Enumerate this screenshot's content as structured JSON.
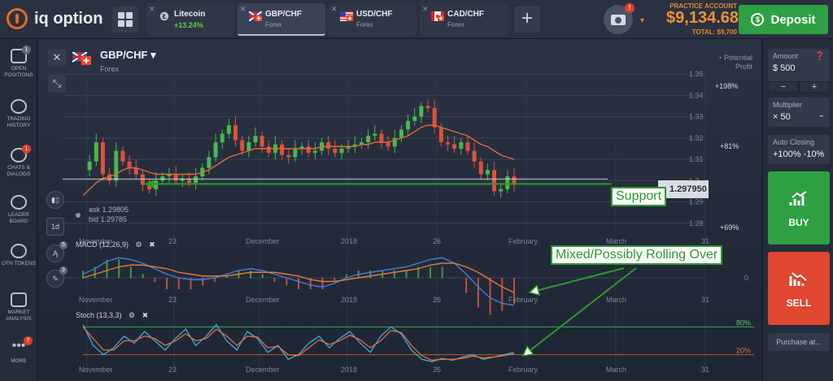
{
  "logo": {
    "text": "iq option"
  },
  "tabs": [
    {
      "name": "Litecoin",
      "sub": "+13.24%",
      "icon": "litecoin-icon",
      "positive": true
    },
    {
      "name": "GBP/CHF",
      "sub": "Forex",
      "icon": "flag-gbp-chf-icon",
      "active": true
    },
    {
      "name": "USD/CHF",
      "sub": "Forex",
      "icon": "flag-usd-chf-icon"
    },
    {
      "name": "CAD/CHF",
      "sub": "Forex",
      "icon": "flag-cad-chf-icon"
    }
  ],
  "account": {
    "type": "PRACTICE ACCOUNT",
    "balance": "$9,134.68",
    "total": "TOTAL: $9,700",
    "notification": "!"
  },
  "deposit_label": "Deposit",
  "sidebar": [
    {
      "label": "OPEN POSITIONS",
      "badge": "1",
      "icon": "chart-lines-icon"
    },
    {
      "label": "TRADING HISTORY",
      "icon": "clock-icon"
    },
    {
      "label": "CHATS & DIALOGS",
      "badge": "1",
      "icon": "chat-icon"
    },
    {
      "label": "LEADER BOARD",
      "icon": "globe-icon"
    },
    {
      "label": "OTN TOKENS",
      "icon": "token-icon"
    },
    {
      "label": "MARKET ANALYSIS",
      "icon": "newspaper-icon"
    },
    {
      "label": "MORE",
      "badge": "7",
      "icon": "more-dots-icon"
    }
  ],
  "chart_header": {
    "pair": "GBP/CHF",
    "market": "Forex"
  },
  "tools": {
    "timeframe": "1d",
    "indicators_badge": "5",
    "drawing_badge": "3"
  },
  "potential_profit": {
    "label": "Potential Profit",
    "levels": [
      "+198%",
      "+81%",
      "+69%"
    ]
  },
  "quote": {
    "ask": "ask 1.29805",
    "bid": "bid 1.29785",
    "current": "1.297950"
  },
  "annotations": {
    "support": "Support",
    "rolling": "Mixed/Possibly Rolling Over"
  },
  "indicators": {
    "macd": "MACD (12,26,9)",
    "stoch": "Stoch (13,3,3)"
  },
  "right_panel": {
    "amount_title": "Amount",
    "amount_value": "$ 500",
    "minus": "−",
    "plus": "+",
    "multiplier_title": "Multiplier",
    "multiplier_value": "× 50",
    "auto_closing_title": "Auto Closing",
    "auto_closing_value": "+100% -10%",
    "buy_label": "BUY",
    "sell_label": "SELL",
    "purchase_label": "Purchase at..."
  },
  "chart_data": [
    {
      "type": "candlestick",
      "title": "GBP/CHF",
      "y_ticks": [
        "1.35",
        "1.34",
        "1.33",
        "1.32",
        "1.31",
        "1.3",
        "1.29",
        "1.28"
      ],
      "ylim": [
        1.275,
        1.355
      ],
      "x_labels": [
        "November",
        "23",
        "December",
        "2018",
        "26",
        "February",
        "March",
        "31"
      ],
      "series": [
        {
          "name": "price",
          "values": [
            1.305,
            1.309,
            1.318,
            1.303,
            1.3,
            1.314,
            1.309,
            1.306,
            1.303,
            1.298,
            1.296,
            1.3,
            1.302,
            1.303,
            1.3,
            1.301,
            1.299,
            1.302,
            1.306,
            1.311,
            1.318,
            1.322,
            1.326,
            1.319,
            1.314,
            1.318,
            1.321,
            1.316,
            1.313,
            1.317,
            1.312,
            1.311,
            1.315,
            1.316,
            1.313,
            1.314,
            1.318,
            1.315,
            1.313,
            1.315,
            1.316,
            1.317,
            1.318,
            1.321,
            1.322,
            1.318,
            1.316,
            1.32,
            1.324,
            1.328,
            1.33,
            1.335,
            1.334,
            1.325,
            1.318,
            1.317,
            1.315,
            1.318,
            1.314,
            1.309,
            1.303,
            1.305,
            1.295,
            1.296,
            1.302,
            1.298
          ]
        },
        {
          "name": "moving-average",
          "values": [
            1.293,
            1.296,
            1.299,
            1.301,
            1.302,
            1.303,
            1.305,
            1.306,
            1.306,
            1.305,
            1.304,
            1.303,
            1.303,
            1.303,
            1.303,
            1.303,
            1.303,
            1.303,
            1.304,
            1.305,
            1.307,
            1.309,
            1.311,
            1.312,
            1.313,
            1.314,
            1.315,
            1.315,
            1.315,
            1.315,
            1.315,
            1.315,
            1.315,
            1.315,
            1.315,
            1.315,
            1.316,
            1.316,
            1.316,
            1.316,
            1.316,
            1.316,
            1.317,
            1.317,
            1.318,
            1.318,
            1.318,
            1.319,
            1.32,
            1.321,
            1.323,
            1.325,
            1.326,
            1.326,
            1.325,
            1.324,
            1.323,
            1.322,
            1.321,
            1.319,
            1.317,
            1.316,
            1.314,
            1.312,
            1.311,
            1.31
          ]
        }
      ],
      "support_level": 1.2985
    },
    {
      "type": "line",
      "title": "MACD (12,26,9)",
      "zero_line": "0",
      "series": [
        {
          "name": "macd",
          "values": [
            0.2,
            0.5,
            0.9,
            1.1,
            1.0,
            0.8,
            0.5,
            0.2,
            0.0,
            -0.1,
            -0.1,
            0.0,
            0.2,
            0.4,
            0.5,
            0.4,
            0.2,
            0.0,
            -0.2,
            -0.4,
            -0.5,
            -0.3,
            0.0,
            0.2,
            0.3,
            0.4,
            0.5,
            0.6,
            0.8,
            1.0,
            1.1,
            0.8,
            0.2,
            -0.5,
            -1.1,
            -1.4,
            -1.5
          ]
        },
        {
          "name": "signal",
          "values": [
            0.0,
            0.2,
            0.4,
            0.6,
            0.7,
            0.7,
            0.6,
            0.5,
            0.3,
            0.2,
            0.1,
            0.1,
            0.1,
            0.2,
            0.3,
            0.3,
            0.3,
            0.2,
            0.1,
            -0.1,
            -0.2,
            -0.2,
            -0.1,
            0.0,
            0.1,
            0.2,
            0.3,
            0.4,
            0.5,
            0.7,
            0.8,
            0.8,
            0.6,
            0.3,
            -0.1,
            -0.5,
            -0.8
          ]
        }
      ]
    },
    {
      "type": "line",
      "title": "Stoch (13,3,3)",
      "levels": [
        "80%",
        "20%"
      ],
      "series": [
        {
          "name": "k",
          "values": [
            85,
            40,
            20,
            35,
            60,
            45,
            70,
            50,
            30,
            55,
            75,
            40,
            60,
            85,
            50,
            30,
            70,
            55,
            25,
            40,
            10,
            20,
            45,
            60,
            35,
            55,
            70,
            45,
            25,
            60,
            80,
            65,
            30,
            10,
            5,
            12,
            8,
            15,
            20,
            10,
            15,
            20,
            25
          ]
        },
        {
          "name": "d",
          "values": [
            80,
            55,
            30,
            30,
            50,
            50,
            60,
            55,
            40,
            50,
            65,
            50,
            55,
            75,
            60,
            40,
            60,
            58,
            35,
            38,
            20,
            18,
            35,
            52,
            42,
            50,
            62,
            52,
            35,
            50,
            72,
            68,
            40,
            18,
            8,
            10,
            10,
            12,
            17,
            13,
            15,
            18,
            22
          ]
        }
      ]
    }
  ],
  "colors": {
    "accent_green": "#2ea043",
    "sell_red": "#e0472f",
    "balance_orange": "#f0922f",
    "ma_line": "#e06a3a",
    "annotation_green": "#2b9a2b"
  }
}
